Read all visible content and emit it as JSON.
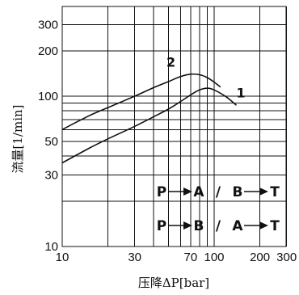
{
  "chart_data": {
    "type": "line",
    "xlabel": "压降ΔP[bar]",
    "ylabel": "流量[1/min]",
    "x_scale": "log",
    "y_scale": "log",
    "xlim": [
      10,
      350
    ],
    "ylim": [
      10,
      400
    ],
    "grid": true,
    "x_ticks": [
      10,
      30,
      70,
      100,
      200,
      300
    ],
    "x_tick_labels": [
      "10",
      "30",
      "70",
      "100",
      "200",
      "300"
    ],
    "x_grid": [
      20,
      30,
      40,
      50,
      60,
      70,
      80,
      90,
      100,
      200,
      300
    ],
    "y_ticks": [
      10,
      30,
      50,
      100,
      200,
      300
    ],
    "y_tick_labels": [
      "10",
      "30",
      "50",
      "100",
      "200",
      "300"
    ],
    "y_grid": [
      20,
      30,
      40,
      50,
      60,
      70,
      80,
      90,
      100,
      200,
      300
    ],
    "series": [
      {
        "name": "1",
        "x": [
          10,
          15,
          20,
          30,
          40,
          50,
          60,
          70,
          80,
          90,
          100,
          120,
          140
        ],
        "y": [
          36,
          45,
          52,
          63,
          73,
          82,
          92,
          102,
          110,
          113,
          110,
          99,
          87
        ]
      },
      {
        "name": "2",
        "x": [
          10,
          15,
          20,
          30,
          40,
          50,
          60,
          70,
          80,
          90,
          100,
          110
        ],
        "y": [
          60,
          74,
          84,
          100,
          114,
          125,
          135,
          140,
          139,
          133,
          124,
          115
        ]
      }
    ],
    "annotations": [
      {
        "text": "1",
        "x": 150,
        "y": 98
      },
      {
        "text": "2",
        "x": 52,
        "y": 157
      }
    ],
    "flow_labels": [
      {
        "from": "P",
        "to": "A",
        "sep": "/",
        "from2": "B",
        "to2": "T"
      },
      {
        "from": "P",
        "to": "B",
        "sep": "/",
        "from2": "A",
        "to2": "T"
      }
    ]
  }
}
